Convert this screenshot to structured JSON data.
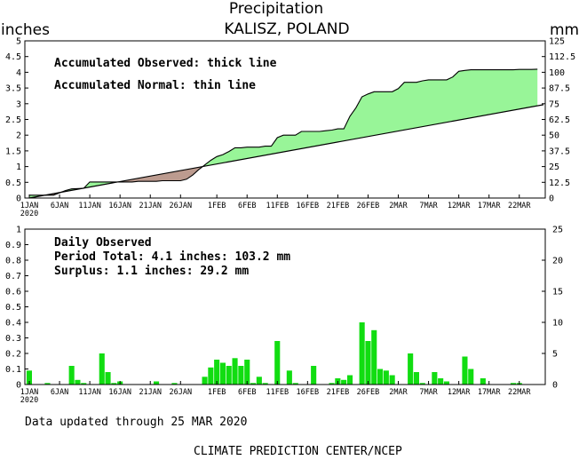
{
  "title": "Precipitation",
  "subtitle": "KALISZ, POLAND",
  "units_left": "inches",
  "units_right": "mm",
  "footer_updated": "Data updated through 25 MAR 2020",
  "footer_credit": "CLIMATE PREDICTION CENTER/NCEP",
  "colors": {
    "surplus": "#98f598",
    "deficit": "#bc9b8f",
    "bars": "#11dd11",
    "line": "#000000"
  },
  "chart_data": [
    {
      "type": "area",
      "annotations": [
        "Accumulated Observed: thick line",
        "Accumulated Normal: thin line"
      ],
      "ylim": [
        0,
        5
      ],
      "yticks": [
        "0",
        "0.5",
        "1",
        "1.5",
        "2",
        "2.5",
        "3",
        "3.5",
        "4",
        "4.5",
        "5"
      ],
      "y2ticks": [
        "0",
        "12.5",
        "25",
        "37.5",
        "50",
        "62.5",
        "75",
        "87.5",
        "100",
        "112.5",
        "125"
      ],
      "xlim": [
        0,
        85
      ],
      "xticks": [
        {
          "x": 0,
          "label": "1JAN",
          "sub": "2020"
        },
        {
          "x": 5,
          "label": "6JAN"
        },
        {
          "x": 10,
          "label": "11JAN"
        },
        {
          "x": 15,
          "label": "16JAN"
        },
        {
          "x": 20,
          "label": "21JAN"
        },
        {
          "x": 25,
          "label": "26JAN"
        },
        {
          "x": 31,
          "label": "1FEB"
        },
        {
          "x": 36,
          "label": "6FEB"
        },
        {
          "x": 41,
          "label": "11FEB"
        },
        {
          "x": 46,
          "label": "16FEB"
        },
        {
          "x": 51,
          "label": "21FEB"
        },
        {
          "x": 56,
          "label": "26FEB"
        },
        {
          "x": 61,
          "label": "2MAR"
        },
        {
          "x": 66,
          "label": "7MAR"
        },
        {
          "x": 71,
          "label": "12MAR"
        },
        {
          "x": 76,
          "label": "17MAR"
        },
        {
          "x": 81,
          "label": "22MAR"
        }
      ],
      "normal": {
        "x": [
          0,
          85
        ],
        "y": [
          0,
          2.97
        ]
      },
      "observed": {
        "x": [
          0,
          3,
          4,
          6,
          7,
          9,
          10,
          11,
          12,
          13,
          14,
          15,
          16,
          17,
          18,
          19,
          20,
          21,
          22,
          23,
          24,
          25,
          26,
          27,
          28,
          29,
          30,
          31,
          32,
          33,
          34,
          35,
          36,
          37,
          38,
          39,
          40,
          41,
          42,
          43,
          44,
          45,
          46,
          47,
          48,
          49,
          50,
          51,
          52,
          53,
          54,
          55,
          56,
          57,
          58,
          59,
          60,
          61,
          62,
          63,
          64,
          65,
          66,
          67,
          68,
          69,
          70,
          71,
          72,
          73,
          74,
          75,
          76,
          77,
          78,
          79,
          80,
          81,
          82,
          83,
          84
        ],
        "y": [
          0.09,
          0.09,
          0.09,
          0.24,
          0.29,
          0.31,
          0.51,
          0.51,
          0.51,
          0.51,
          0.51,
          0.51,
          0.51,
          0.51,
          0.53,
          0.53,
          0.53,
          0.53,
          0.55,
          0.55,
          0.55,
          0.55,
          0.6,
          0.73,
          0.9,
          1.05,
          1.2,
          1.32,
          1.38,
          1.48,
          1.6,
          1.6,
          1.62,
          1.62,
          1.62,
          1.65,
          1.65,
          1.92,
          2.0,
          2.0,
          2.0,
          2.12,
          2.12,
          2.12,
          2.12,
          2.14,
          2.16,
          2.2,
          2.2,
          2.6,
          2.87,
          3.22,
          3.31,
          3.38,
          3.38,
          3.38,
          3.38,
          3.48,
          3.68,
          3.68,
          3.68,
          3.73,
          3.76,
          3.76,
          3.76,
          3.76,
          3.85,
          4.03,
          4.06,
          4.08,
          4.08,
          4.08,
          4.08,
          4.08,
          4.08,
          4.08,
          4.08,
          4.09,
          4.09,
          4.09,
          4.1
        ]
      }
    },
    {
      "type": "bar",
      "title": "Daily Observed",
      "annotations": [
        "Period Total:     4.1 inches:    103.2 mm",
        "Surplus:     1.1 inches:    29.2 mm"
      ],
      "ylim": [
        0,
        1
      ],
      "yticks": [
        "0",
        "0.1",
        "0.2",
        "0.3",
        "0.4",
        "0.5",
        "0.6",
        "0.7",
        "0.8",
        "0.9",
        "1"
      ],
      "y2ticks": [
        "0",
        "5",
        "10",
        "15",
        "20",
        "25"
      ],
      "x": [
        0,
        3,
        7,
        8,
        9,
        12,
        13,
        14,
        15,
        21,
        24,
        29,
        30,
        31,
        32,
        33,
        34,
        35,
        36,
        37,
        38,
        39,
        41,
        43,
        44,
        47,
        50,
        51,
        52,
        53,
        55,
        56,
        57,
        58,
        59,
        60,
        63,
        64,
        65,
        67,
        68,
        69,
        72,
        73,
        75,
        80,
        81
      ],
      "values": [
        0.09,
        0.01,
        0.12,
        0.03,
        0.01,
        0.2,
        0.08,
        0.01,
        0.02,
        0.02,
        0.01,
        0.05,
        0.11,
        0.16,
        0.14,
        0.12,
        0.17,
        0.12,
        0.16,
        0.01,
        0.05,
        0.01,
        0.28,
        0.09,
        0.01,
        0.12,
        0.01,
        0.04,
        0.03,
        0.06,
        0.4,
        0.28,
        0.35,
        0.1,
        0.09,
        0.06,
        0.2,
        0.08,
        0.01,
        0.08,
        0.04,
        0.02,
        0.18,
        0.1,
        0.04,
        0.01,
        0.01
      ]
    }
  ]
}
